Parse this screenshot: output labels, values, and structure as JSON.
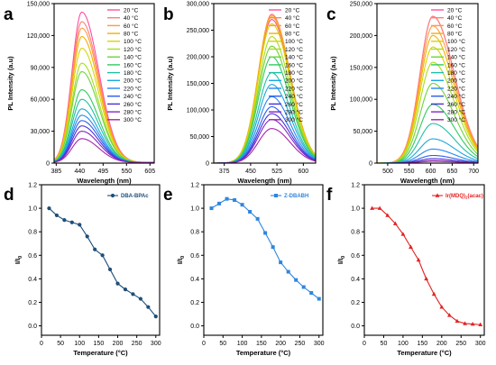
{
  "colors": {
    "temperature_palette": [
      "#ff4fa0",
      "#ff7f79",
      "#ff9a40",
      "#f2b100",
      "#d8d400",
      "#a9dd1e",
      "#6fd43c",
      "#34c95f",
      "#1fc0a8",
      "#1ba8de",
      "#2a86f0",
      "#2d5ee8",
      "#4a2fd6",
      "#8427c5",
      "#a326a9",
      "#6a1a6a",
      "#3a0a45"
    ],
    "panel_d": "#1f4e79",
    "panel_e": "#2e86de",
    "panel_f": "#e32222"
  },
  "chart_data": [
    {
      "panel": "a",
      "type": "line",
      "xlabel": "Wavelength (nm)",
      "ylabel": "PL Intensity (a.u)",
      "xlim": [
        380,
        615
      ],
      "ylim": [
        0,
        150000
      ],
      "xticks": [
        385,
        440,
        495,
        550,
        605
      ],
      "yticks": [
        0,
        30000,
        60000,
        90000,
        120000,
        150000
      ],
      "ytick_labels": [
        "0",
        "30,000",
        "60,000",
        "90,000",
        "120,000",
        "150,000"
      ],
      "peak_wavelength": 445,
      "width_left": 23,
      "width_right": 40,
      "baseline": 500,
      "series": [
        {
          "name": "20 °C",
          "peak": 142000
        },
        {
          "name": "40 °C",
          "peak": 133000
        },
        {
          "name": "60 °C",
          "peak": 127000
        },
        {
          "name": "80 °C",
          "peak": 119000
        },
        {
          "name": "100 °C",
          "peak": 108000
        },
        {
          "name": "120 °C",
          "peak": 94000
        },
        {
          "name": "140 °C",
          "peak": 86000
        },
        {
          "name": "160 °C",
          "peak": 69000
        },
        {
          "name": "180 °C",
          "peak": 60000
        },
        {
          "name": "200 °C",
          "peak": 51000
        },
        {
          "name": "220 °C",
          "peak": 45000
        },
        {
          "name": "240 °C",
          "peak": 40000
        },
        {
          "name": "260 °C",
          "peak": 35000
        },
        {
          "name": "280 °C",
          "peak": 30000
        },
        {
          "name": "300 °C",
          "peak": 23000
        }
      ]
    },
    {
      "panel": "b",
      "type": "line",
      "xlabel": "Wavelength (nm)",
      "ylabel": "PL Intensity (a.u)",
      "xlim": [
        345,
        635
      ],
      "ylim": [
        0,
        300000
      ],
      "xticks": [
        375,
        450,
        525,
        600
      ],
      "yticks": [
        0,
        50000,
        100000,
        150000,
        200000,
        250000,
        300000
      ],
      "ytick_labels": [
        "0",
        "50,000",
        "100,000",
        "150,000",
        "200,000",
        "250,000",
        "300,000"
      ],
      "peak_wavelength": 510,
      "width_left": 38,
      "width_right": 52,
      "baseline": 0,
      "series": [
        {
          "name": "20 °C",
          "peak": 270000
        },
        {
          "name": "40 °C",
          "peak": 280000
        },
        {
          "name": "60 °C",
          "peak": 278000
        },
        {
          "name": "80 °C",
          "peak": 275000
        },
        {
          "name": "100 °C",
          "peak": 262000
        },
        {
          "name": "120 °C",
          "peak": 238000
        },
        {
          "name": "140 °C",
          "peak": 220000
        },
        {
          "name": "160 °C",
          "peak": 200000
        },
        {
          "name": "180 °C",
          "peak": 170000
        },
        {
          "name": "200 °C",
          "peak": 148000
        },
        {
          "name": "220 °C",
          "peak": 125000
        },
        {
          "name": "240 °C",
          "peak": 106000
        },
        {
          "name": "260 °C",
          "peak": 93000
        },
        {
          "name": "280 °C",
          "peak": 82000
        },
        {
          "name": "300 °C",
          "peak": 65000
        }
      ]
    },
    {
      "panel": "c",
      "type": "line",
      "xlabel": "Wavelength (nm)",
      "ylabel": "PL Intensity (a.u)",
      "xlim": [
        475,
        710
      ],
      "ylim": [
        0,
        250000
      ],
      "xticks": [
        500,
        550,
        600,
        650,
        700
      ],
      "yticks": [
        0,
        50000,
        100000,
        150000,
        200000,
        250000
      ],
      "ytick_labels": [
        "0",
        "50,000",
        "100,000",
        "150,000",
        "200,000",
        "250,000"
      ],
      "peak_wavelength": 605,
      "width_left": 30,
      "width_right": 50,
      "baseline": 0,
      "series": [
        {
          "name": "20 °C",
          "peak": 230000
        },
        {
          "name": "40 °C",
          "peak": 230000
        },
        {
          "name": "60 °C",
          "peak": 215000
        },
        {
          "name": "80 °C",
          "peak": 200000
        },
        {
          "name": "100 °C",
          "peak": 182000
        },
        {
          "name": "120 °C",
          "peak": 158000
        },
        {
          "name": "140 °C",
          "peak": 125000
        },
        {
          "name": "160 °C",
          "peak": 92000
        },
        {
          "name": "180 °C",
          "peak": 62000
        },
        {
          "name": "200 °C",
          "peak": 38000
        },
        {
          "name": "220 °C",
          "peak": 22000
        },
        {
          "name": "240 °C",
          "peak": 12000
        },
        {
          "name": "260 °C",
          "peak": 7000
        },
        {
          "name": "280 °C",
          "peak": 4000
        },
        {
          "name": "300 °C",
          "peak": 3000
        }
      ]
    },
    {
      "panel": "d",
      "type": "line",
      "xlabel": "Temperature (°C)",
      "ylabel": "I/I0",
      "legend": "DBA-BPAc",
      "legend_position": "top-right",
      "marker": "circle",
      "xlim": [
        0,
        310
      ],
      "ylim": [
        -0.08,
        1.2
      ],
      "xticks": [
        0,
        50,
        100,
        150,
        200,
        250,
        300
      ],
      "yticks": [
        0.0,
        0.2,
        0.4,
        0.6,
        0.8,
        1.0,
        1.2
      ],
      "ytick_labels": [
        "0.0",
        "0.2",
        "0.4",
        "0.6",
        "0.8",
        "1.0",
        "1.2"
      ],
      "x": [
        20,
        40,
        60,
        80,
        100,
        120,
        140,
        160,
        180,
        200,
        220,
        240,
        260,
        280,
        300
      ],
      "y": [
        1.0,
        0.94,
        0.9,
        0.88,
        0.86,
        0.76,
        0.65,
        0.6,
        0.48,
        0.36,
        0.31,
        0.27,
        0.23,
        0.16,
        0.08
      ]
    },
    {
      "panel": "e",
      "type": "line",
      "xlabel": "Temperature (°C)",
      "ylabel": "I/I0",
      "legend": "Z-DBABH",
      "legend_position": "top-right",
      "marker": "square",
      "xlim": [
        0,
        310
      ],
      "ylim": [
        -0.08,
        1.2
      ],
      "xticks": [
        0,
        50,
        100,
        150,
        200,
        250,
        300
      ],
      "yticks": [
        0.0,
        0.2,
        0.4,
        0.6,
        0.8,
        1.0,
        1.2
      ],
      "ytick_labels": [
        "0.0",
        "0.2",
        "0.4",
        "0.6",
        "0.8",
        "1.0",
        "1.2"
      ],
      "x": [
        20,
        40,
        60,
        80,
        100,
        120,
        140,
        160,
        180,
        200,
        220,
        240,
        260,
        280,
        300
      ],
      "y": [
        1.0,
        1.04,
        1.08,
        1.07,
        1.03,
        0.97,
        0.91,
        0.79,
        0.67,
        0.54,
        0.46,
        0.39,
        0.33,
        0.28,
        0.23
      ]
    },
    {
      "panel": "f",
      "type": "line",
      "xlabel": "Temperature (°C)",
      "ylabel": "I/I0",
      "legend": "Ir(MDQ)2(acac)",
      "legend_position": "top-right",
      "marker": "triangle",
      "xlim": [
        0,
        310
      ],
      "ylim": [
        -0.08,
        1.2
      ],
      "xticks": [
        0,
        50,
        100,
        150,
        200,
        250,
        300
      ],
      "yticks": [
        0.0,
        0.2,
        0.4,
        0.6,
        0.8,
        1.0,
        1.2
      ],
      "ytick_labels": [
        "0.0",
        "0.2",
        "0.4",
        "0.6",
        "0.8",
        "1.0",
        "1.2"
      ],
      "x": [
        20,
        40,
        60,
        80,
        100,
        120,
        140,
        160,
        180,
        200,
        220,
        240,
        260,
        280,
        300
      ],
      "y": [
        1.0,
        1.0,
        0.94,
        0.87,
        0.78,
        0.67,
        0.56,
        0.4,
        0.27,
        0.16,
        0.09,
        0.04,
        0.02,
        0.015,
        0.01
      ]
    }
  ]
}
